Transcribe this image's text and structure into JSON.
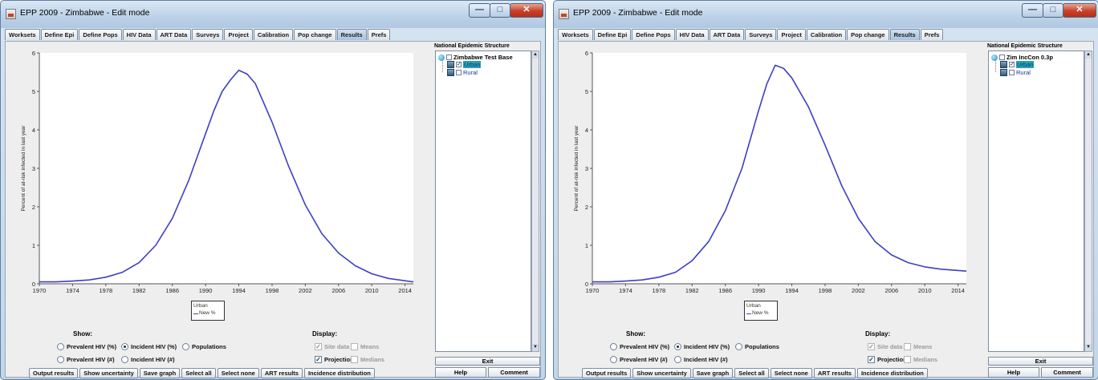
{
  "windows": [
    {
      "title": "EPP 2009 - Zimbabwe - Edit mode",
      "tabs": [
        "Worksets",
        "Define Epi",
        "Define Pops",
        "HIV Data",
        "ART Data",
        "Surveys",
        "Project",
        "Calibration",
        "Pop change",
        "Results",
        "Prefs"
      ],
      "active_tab": "Results",
      "tree_header": "National Epidemic Structure",
      "tree_root": "Zimbabwe Test Base",
      "tree_children": [
        "Urban",
        "Rural"
      ],
      "selected_child": "Urban",
      "legend": {
        "title": "Urban",
        "series": "New %"
      },
      "show_label": "Show:",
      "display_label": "Display:",
      "show_options": [
        "Prevalent HIV (%)",
        "Incident HIV (%)",
        "Populations",
        "Prevalent HIV (#)",
        "Incident HIV (#)"
      ],
      "selected_show": "Incident HIV (%)",
      "display_options": [
        "Site data",
        "Means",
        "Projection",
        "Medians"
      ],
      "buttons": [
        "Output results",
        "Show uncertainty",
        "Save graph",
        "Select all",
        "Select none",
        "ART results",
        "Incidence distribution"
      ],
      "exit": "Exit",
      "help": "Help",
      "comment": "Comment"
    },
    {
      "title": "EPP 2009 - Zimbabwe - Edit mode",
      "tabs": [
        "Worksets",
        "Define Epi",
        "Define Pops",
        "HIV Data",
        "ART Data",
        "Surveys",
        "Project",
        "Calibration",
        "Pop change",
        "Results",
        "Prefs"
      ],
      "active_tab": "Results",
      "tree_header": "National Epidemic Structure",
      "tree_root": "Zim IncCon 0.3p",
      "tree_children": [
        "Urban",
        "Rural"
      ],
      "selected_child": "Urban",
      "legend": {
        "title": "Urban",
        "series": "New %"
      },
      "show_label": "Show:",
      "display_label": "Display:",
      "show_options": [
        "Prevalent HIV (%)",
        "Incident HIV (%)",
        "Populations",
        "Prevalent HIV (#)",
        "Incident HIV (#)"
      ],
      "selected_show": "Incident HIV (%)",
      "display_options": [
        "Site data",
        "Means",
        "Projection",
        "Medians"
      ],
      "buttons": [
        "Output results",
        "Show uncertainty",
        "Save graph",
        "Select all",
        "Select none",
        "ART results",
        "Incidence distribution"
      ],
      "exit": "Exit",
      "help": "Help",
      "comment": "Comment"
    }
  ],
  "chart_data": [
    {
      "type": "line",
      "xlabel": "",
      "ylabel": "Percent of at-risk infected in last year",
      "xlim": [
        1970,
        2015
      ],
      "ylim": [
        0,
        6
      ],
      "xticks": [
        1970,
        1974,
        1978,
        1982,
        1986,
        1990,
        1994,
        1998,
        2002,
        2006,
        2010,
        2014
      ],
      "yticks": [
        0,
        1,
        2,
        3,
        4,
        5,
        6
      ],
      "line_color": "#3d3fc6",
      "series": [
        {
          "name": "New %",
          "x": [
            1970,
            1972,
            1974,
            1976,
            1978,
            1980,
            1982,
            1984,
            1986,
            1988,
            1990,
            1991,
            1992,
            1993,
            1994,
            1995,
            1996,
            1998,
            2000,
            2002,
            2004,
            2006,
            2008,
            2010,
            2012,
            2015
          ],
          "values": [
            0.05,
            0.05,
            0.07,
            0.1,
            0.17,
            0.3,
            0.55,
            1.0,
            1.7,
            2.7,
            3.9,
            4.5,
            5.0,
            5.3,
            5.55,
            5.45,
            5.2,
            4.2,
            3.05,
            2.05,
            1.3,
            0.8,
            0.47,
            0.26,
            0.14,
            0.05
          ]
        }
      ]
    },
    {
      "type": "line",
      "xlabel": "",
      "ylabel": "Percent of at-risk infected in last year",
      "xlim": [
        1970,
        2015
      ],
      "ylim": [
        0,
        6
      ],
      "xticks": [
        1970,
        1974,
        1978,
        1982,
        1986,
        1990,
        1994,
        1998,
        2002,
        2006,
        2010,
        2014
      ],
      "yticks": [
        0,
        1,
        2,
        3,
        4,
        5,
        6
      ],
      "line_color": "#3d3fc6",
      "series": [
        {
          "name": "New %",
          "x": [
            1970,
            1972,
            1974,
            1976,
            1978,
            1980,
            1982,
            1984,
            1986,
            1988,
            1990,
            1991,
            1992,
            1993,
            1994,
            1996,
            1998,
            2000,
            2002,
            2004,
            2006,
            2008,
            2010,
            2012,
            2015
          ],
          "values": [
            0.05,
            0.05,
            0.07,
            0.1,
            0.17,
            0.3,
            0.6,
            1.1,
            1.9,
            3.0,
            4.5,
            5.2,
            5.68,
            5.6,
            5.35,
            4.6,
            3.6,
            2.55,
            1.7,
            1.1,
            0.75,
            0.55,
            0.44,
            0.38,
            0.33
          ]
        }
      ]
    }
  ]
}
